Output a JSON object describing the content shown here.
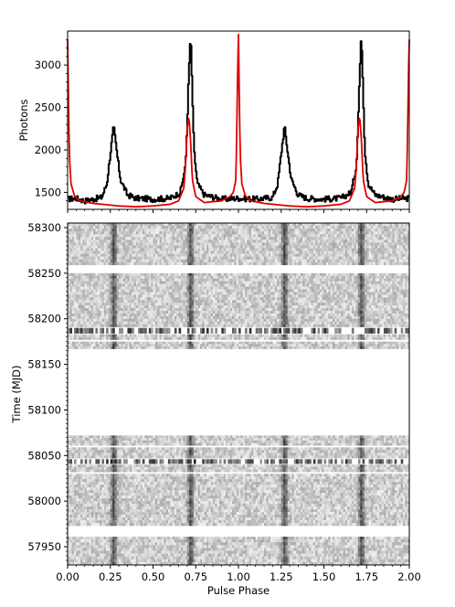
{
  "chart_data": [
    {
      "type": "line",
      "panel": "top",
      "title": "",
      "xlabel": "",
      "ylabel": "Photons",
      "xlim": [
        0.0,
        2.0
      ],
      "ylim": [
        1300,
        3400
      ],
      "yticks": [
        1500,
        2000,
        2500,
        3000
      ],
      "ytick_labels": [
        "1500",
        "2000",
        "2500",
        "3000"
      ],
      "grid": false,
      "legend": "none",
      "series": [
        {
          "color": "#000000",
          "x": [
            0.0,
            0.05,
            0.1,
            0.15,
            0.2,
            0.23,
            0.25,
            0.27,
            0.29,
            0.31,
            0.35,
            0.4,
            0.5,
            0.6,
            0.66,
            0.69,
            0.7,
            0.71,
            0.72,
            0.73,
            0.74,
            0.76,
            0.8,
            0.9,
            1.0,
            1.1,
            1.2,
            1.23,
            1.25,
            1.27,
            1.29,
            1.31,
            1.35,
            1.4,
            1.5,
            1.6,
            1.66,
            1.69,
            1.7,
            1.71,
            1.72,
            1.73,
            1.74,
            1.76,
            1.8,
            1.9,
            2.0
          ],
          "values": [
            1420,
            1430,
            1400,
            1420,
            1440,
            1600,
            1950,
            2280,
            1950,
            1650,
            1470,
            1430,
            1420,
            1430,
            1500,
            1800,
            2300,
            2900,
            3370,
            2700,
            2000,
            1600,
            1470,
            1420,
            1430,
            1420,
            1440,
            1600,
            1950,
            2280,
            1950,
            1650,
            1470,
            1430,
            1420,
            1430,
            1500,
            1800,
            2300,
            2900,
            3370,
            2700,
            2000,
            1600,
            1470,
            1420,
            1430
          ]
        },
        {
          "color": "#e00000",
          "x": [
            0.0,
            0.005,
            0.01,
            0.02,
            0.04,
            0.07,
            0.1,
            0.15,
            0.2,
            0.3,
            0.4,
            0.5,
            0.6,
            0.65,
            0.68,
            0.69,
            0.7,
            0.71,
            0.72,
            0.73,
            0.75,
            0.8,
            0.9,
            0.95,
            0.97,
            0.985,
            0.99,
            0.995,
            1.0,
            1.005,
            1.01,
            1.02,
            1.04,
            1.07,
            1.1,
            1.15,
            1.2,
            1.3,
            1.4,
            1.5,
            1.6,
            1.65,
            1.68,
            1.69,
            1.7,
            1.71,
            1.72,
            1.73,
            1.75,
            1.8,
            1.9,
            1.95,
            1.97,
            1.985,
            1.99,
            1.995,
            2.0
          ],
          "values": [
            3300,
            2600,
            1950,
            1600,
            1460,
            1400,
            1390,
            1370,
            1360,
            1340,
            1330,
            1340,
            1360,
            1400,
            1550,
            1800,
            2250,
            2400,
            2100,
            1650,
            1450,
            1380,
            1400,
            1450,
            1500,
            1650,
            2200,
            2900,
            3360,
            2600,
            1950,
            1600,
            1460,
            1400,
            1390,
            1370,
            1360,
            1340,
            1330,
            1340,
            1360,
            1400,
            1550,
            1800,
            2250,
            2400,
            2100,
            1650,
            1450,
            1380,
            1400,
            1450,
            1500,
            1650,
            2200,
            2900,
            3300
          ]
        }
      ]
    },
    {
      "type": "heatmap",
      "panel": "bottom",
      "title": "",
      "xlabel": "Pulse Phase",
      "ylabel": "Time (MJD)",
      "xlim": [
        0.0,
        2.0
      ],
      "ylim": [
        57930,
        58305
      ],
      "xticks": [
        0.0,
        0.25,
        0.5,
        0.75,
        1.0,
        1.25,
        1.5,
        1.75,
        2.0
      ],
      "xtick_labels": [
        "0.00",
        "0.25",
        "0.50",
        "0.75",
        "1.00",
        "1.25",
        "1.50",
        "1.75",
        "2.00"
      ],
      "yticks": [
        57950,
        58000,
        58050,
        58100,
        58150,
        58200,
        58250,
        58300
      ],
      "ytick_labels": [
        "57950",
        "58000",
        "58050",
        "58100",
        "58150",
        "58200",
        "58250",
        "58300"
      ],
      "colormap": "grayscale",
      "peak_phases": [
        0.27,
        0.72,
        1.27,
        1.72
      ],
      "data_bands_mjd": [
        [
          57930,
          57961
        ],
        [
          57973,
          58030
        ],
        [
          58032,
          58040
        ],
        [
          58041,
          58046
        ],
        [
          58047,
          58059
        ],
        [
          58061,
          58072
        ],
        [
          58167,
          58175
        ],
        [
          58177,
          58183
        ],
        [
          58184,
          58190
        ],
        [
          58191,
          58250
        ],
        [
          58259,
          58305
        ]
      ],
      "sparse_bands_mjd": [
        [
          58041,
          58046
        ],
        [
          58184,
          58190
        ]
      ],
      "gaps_mjd": [
        [
          57961,
          57973
        ],
        [
          58030,
          58032
        ],
        [
          58040,
          58041
        ],
        [
          58046,
          58047
        ],
        [
          58059,
          58061
        ],
        [
          58072,
          58167
        ],
        [
          58175,
          58177
        ],
        [
          58183,
          58184
        ],
        [
          58190,
          58191
        ],
        [
          58250,
          58259
        ]
      ]
    }
  ]
}
